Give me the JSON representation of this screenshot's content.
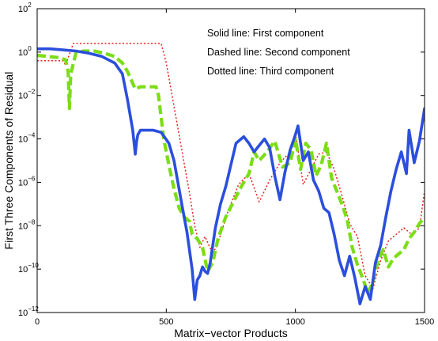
{
  "chart_data": {
    "type": "line",
    "title": "",
    "xlabel": "Matrix−vector Products",
    "ylabel": "First Three Components of Residual",
    "xlim": [
      0,
      1500
    ],
    "ylim_log10": [
      -12,
      2
    ],
    "yscale": "log",
    "grid": false,
    "x_ticks": [
      {
        "value": 0,
        "label": "0"
      },
      {
        "value": 500,
        "label": "500"
      },
      {
        "value": 1000,
        "label": "1000"
      },
      {
        "value": 1500,
        "label": "1500"
      }
    ],
    "y_ticks": [
      {
        "exp": 2,
        "base": "10",
        "sup": "2"
      },
      {
        "exp": 0,
        "base": "10",
        "sup": "0"
      },
      {
        "exp": -2,
        "base": "10",
        "sup": "−2"
      },
      {
        "exp": -4,
        "base": "10",
        "sup": "−4"
      },
      {
        "exp": -6,
        "base": "10",
        "sup": "−6"
      },
      {
        "exp": -8,
        "base": "10",
        "sup": "−8"
      },
      {
        "exp": -10,
        "base": "10",
        "sup": "−10"
      },
      {
        "exp": -12,
        "base": "10",
        "sup": "−12"
      }
    ],
    "annotations": [
      "Solid line: First component",
      "Dashed line: Second component",
      "Dotted line: Third component"
    ],
    "series": [
      {
        "style": "solid",
        "color": "#2b4fdc",
        "x": [
          0,
          50,
          100,
          150,
          200,
          250,
          300,
          330,
          350,
          370,
          380,
          385,
          390,
          400,
          420,
          450,
          480,
          510,
          530,
          545,
          560,
          580,
          600,
          610,
          620,
          630,
          640,
          650,
          660,
          670,
          690,
          710,
          730,
          750,
          770,
          800,
          820,
          840,
          860,
          880,
          900,
          920,
          940,
          960,
          980,
          1000,
          1010,
          1030,
          1050,
          1070,
          1090,
          1110,
          1130,
          1150,
          1170,
          1190,
          1210,
          1230,
          1250,
          1270,
          1290,
          1310,
          1330,
          1350,
          1370,
          1390,
          1410,
          1430,
          1440,
          1460,
          1480,
          1500
        ],
        "y_log10": [
          0.15,
          0.15,
          0.1,
          0.05,
          -0.05,
          -0.2,
          -0.5,
          -1.0,
          -2.2,
          -3.6,
          -4.7,
          -4.1,
          -3.8,
          -3.6,
          -3.6,
          -3.6,
          -3.7,
          -4.2,
          -5.0,
          -6.0,
          -7.0,
          -8.3,
          -10.0,
          -11.4,
          -10.5,
          -10.3,
          -9.9,
          -10.1,
          -10.2,
          -9.7,
          -8.1,
          -7.0,
          -6.2,
          -5.2,
          -4.2,
          -3.9,
          -4.2,
          -4.6,
          -4.3,
          -4.0,
          -4.4,
          -5.7,
          -6.8,
          -5.5,
          -4.5,
          -3.8,
          -3.4,
          -5.0,
          -4.6,
          -5.9,
          -6.4,
          -7.2,
          -7.4,
          -8.4,
          -9.6,
          -10.3,
          -9.4,
          -10.4,
          -11.6,
          -10.8,
          -11.4,
          -9.7,
          -8.9,
          -7.6,
          -6.4,
          -5.4,
          -4.6,
          -5.6,
          -3.6,
          -5.1,
          -4.1,
          -2.6
        ]
      },
      {
        "style": "dashed",
        "color": "#7bdd16",
        "x": [
          0,
          40,
          80,
          110,
          120,
          125,
          130,
          150,
          180,
          220,
          260,
          300,
          330,
          350,
          380,
          400,
          420,
          440,
          460,
          470,
          490,
          510,
          530,
          550,
          570,
          590,
          600,
          620,
          640,
          660,
          680,
          700,
          730,
          760,
          790,
          820,
          840,
          860,
          890,
          920,
          950,
          980,
          1000,
          1020,
          1040,
          1060,
          1080,
          1100,
          1120,
          1140,
          1160,
          1180,
          1200,
          1220,
          1240,
          1260,
          1280,
          1300,
          1320,
          1340,
          1360,
          1380,
          1400,
          1420,
          1440,
          1460,
          1480,
          1500
        ],
        "y_log10": [
          -0.15,
          -0.2,
          -0.25,
          -0.35,
          -0.9,
          -2.6,
          -1.0,
          -0.05,
          0.05,
          0.05,
          -0.05,
          -0.2,
          -0.5,
          -0.9,
          -1.7,
          -1.6,
          -1.6,
          -1.6,
          -1.6,
          -2.0,
          -4.0,
          -5.2,
          -6.3,
          -7.2,
          -7.6,
          -7.8,
          -8.4,
          -8.6,
          -9.0,
          -10.1,
          -9.7,
          -8.6,
          -7.6,
          -6.9,
          -6.2,
          -5.6,
          -4.6,
          -5.0,
          -4.6,
          -4.1,
          -5.3,
          -5.1,
          -4.0,
          -5.4,
          -4.2,
          -4.5,
          -5.7,
          -5.2,
          -4.2,
          -5.8,
          -6.4,
          -7.0,
          -7.7,
          -9.0,
          -9.8,
          -10.4,
          -11.1,
          -10.6,
          -9.6,
          -9.1,
          -9.9,
          -9.5,
          -9.3,
          -9.1,
          -8.6,
          -8.3,
          -7.9,
          -7.6
        ]
      },
      {
        "style": "dotted",
        "color": "#e8211c",
        "x": [
          0,
          100,
          110,
          140,
          200,
          300,
          400,
          480,
          500,
          530,
          560,
          590,
          610,
          630,
          650,
          680,
          700,
          740,
          780,
          820,
          860,
          900,
          940,
          980,
          1000,
          1030,
          1060,
          1090,
          1120,
          1150,
          1180,
          1210,
          1240,
          1270,
          1300,
          1330,
          1360,
          1390,
          1420,
          1450,
          1480,
          1500
        ],
        "y_log10": [
          -0.4,
          -0.4,
          -0.6,
          0.4,
          0.4,
          0.4,
          0.4,
          0.4,
          -0.5,
          -2.5,
          -4.5,
          -6.5,
          -8.0,
          -9.0,
          -8.5,
          -9.3,
          -8.8,
          -7.3,
          -6.1,
          -5.6,
          -6.9,
          -5.9,
          -5.1,
          -4.6,
          -3.7,
          -6.1,
          -5.4,
          -4.7,
          -4.6,
          -5.4,
          -6.6,
          -7.9,
          -8.5,
          -10.3,
          -10.9,
          -9.6,
          -8.7,
          -8.4,
          -8.1,
          -8.4,
          -8.1,
          -6.4
        ]
      }
    ]
  }
}
